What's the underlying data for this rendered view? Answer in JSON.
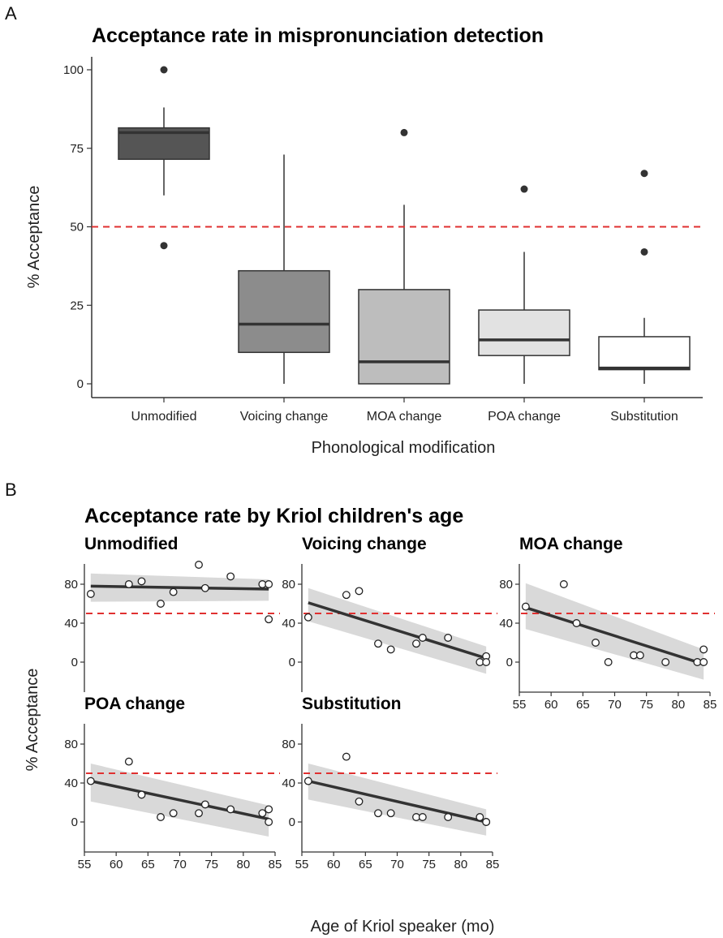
{
  "panel_a_letter": "A",
  "panel_b_letter": "B",
  "chart_data": [
    {
      "type": "box",
      "title": "Acceptance rate in mispronunciation detection",
      "xlabel": "Phonological modification",
      "ylabel": "% Acceptance",
      "ylim": [
        0,
        100
      ],
      "yticks": [
        0,
        25,
        50,
        75,
        100
      ],
      "reference_line": 50,
      "reference_color": "#e03030",
      "categories": [
        "Unmodified",
        "Voicing change",
        "MOA change",
        "POA change",
        "Substitution"
      ],
      "boxes": [
        {
          "category": "Unmodified",
          "min": 60,
          "q1": 71.5,
          "median": 80,
          "q3": 81.5,
          "max": 88,
          "outliers": [
            100,
            44
          ],
          "fill": "#555555"
        },
        {
          "category": "Voicing change",
          "min": 0,
          "q1": 10,
          "median": 19,
          "q3": 36,
          "max": 73,
          "outliers": [],
          "fill": "#8c8c8c"
        },
        {
          "category": "MOA change",
          "min": 0,
          "q1": 0,
          "median": 7,
          "q3": 30,
          "max": 57,
          "outliers": [
            80
          ],
          "fill": "#bdbdbd"
        },
        {
          "category": "POA change",
          "min": 0,
          "q1": 9,
          "median": 14,
          "q3": 23.5,
          "max": 42,
          "outliers": [
            62
          ],
          "fill": "#e2e2e2"
        },
        {
          "category": "Substitution",
          "min": 0,
          "q1": 4.5,
          "median": 5,
          "q3": 15,
          "max": 21,
          "outliers": [
            67,
            42
          ],
          "fill": "#ffffff"
        }
      ]
    },
    {
      "type": "scatter",
      "title": "Acceptance rate by Kriol children's age",
      "xlabel": "Age of Kriol speaker (mo)",
      "ylabel": "% Acceptance",
      "xlim": [
        55,
        85
      ],
      "xticks": [
        55,
        60,
        65,
        70,
        75,
        80,
        85
      ],
      "ylim": [
        -20,
        100
      ],
      "yticks": [
        0,
        40,
        80
      ],
      "reference_line": 50,
      "reference_color": "#e03030",
      "band_color": "#d9d9d9",
      "facets": [
        {
          "name": "Unmodified",
          "points": [
            [
              56,
              70
            ],
            [
              62,
              80
            ],
            [
              64,
              83
            ],
            [
              67,
              60
            ],
            [
              69,
              72
            ],
            [
              73,
              100
            ],
            [
              74,
              76
            ],
            [
              78,
              88
            ],
            [
              83,
              80
            ],
            [
              84,
              80
            ],
            [
              84,
              44
            ]
          ],
          "fit": {
            "x": [
              56,
              84
            ],
            "y": [
              78,
              75
            ]
          },
          "band": {
            "upper": [
              91,
              85
            ],
            "lower": [
              62,
              63
            ]
          }
        },
        {
          "name": "Voicing change",
          "points": [
            [
              56,
              46
            ],
            [
              62,
              69
            ],
            [
              64,
              73
            ],
            [
              67,
              19
            ],
            [
              69,
              13
            ],
            [
              73,
              19
            ],
            [
              74,
              25
            ],
            [
              78,
              25
            ],
            [
              83,
              0
            ],
            [
              84,
              6
            ],
            [
              84,
              0
            ]
          ],
          "fit": {
            "x": [
              56,
              84
            ],
            "y": [
              61,
              4
            ]
          },
          "band": {
            "upper": [
              76,
              16
            ],
            "lower": [
              42,
              -12
            ]
          }
        },
        {
          "name": "MOA change",
          "points": [
            [
              56,
              57
            ],
            [
              62,
              80
            ],
            [
              64,
              40
            ],
            [
              67,
              20
            ],
            [
              69,
              0
            ],
            [
              73,
              7
            ],
            [
              74,
              7
            ],
            [
              78,
              0
            ],
            [
              83,
              0
            ],
            [
              84,
              13
            ],
            [
              84,
              0
            ]
          ],
          "fit": {
            "x": [
              56,
              84
            ],
            "y": [
              56,
              -2
            ]
          },
          "band": {
            "upper": [
              81,
              13
            ],
            "lower": [
              34,
              -18
            ]
          }
        },
        {
          "name": "POA change",
          "points": [
            [
              56,
              42
            ],
            [
              62,
              62
            ],
            [
              64,
              28
            ],
            [
              67,
              5
            ],
            [
              69,
              9
            ],
            [
              73,
              9
            ],
            [
              74,
              18
            ],
            [
              78,
              13
            ],
            [
              83,
              9
            ],
            [
              84,
              13
            ],
            [
              84,
              0
            ]
          ],
          "fit": {
            "x": [
              56,
              84
            ],
            "y": [
              42,
              3
            ]
          },
          "band": {
            "upper": [
              60,
              17
            ],
            "lower": [
              21,
              -15
            ]
          }
        },
        {
          "name": "Substitution",
          "points": [
            [
              56,
              42
            ],
            [
              62,
              67
            ],
            [
              64,
              21
            ],
            [
              67,
              9
            ],
            [
              69,
              9
            ],
            [
              73,
              5
            ],
            [
              74,
              5
            ],
            [
              78,
              5
            ],
            [
              83,
              5
            ],
            [
              84,
              0
            ],
            [
              84,
              0
            ]
          ],
          "fit": {
            "x": [
              56,
              84
            ],
            "y": [
              42,
              0
            ]
          },
          "band": {
            "upper": [
              60,
              13
            ],
            "lower": [
              23,
              -14
            ]
          }
        }
      ]
    }
  ]
}
